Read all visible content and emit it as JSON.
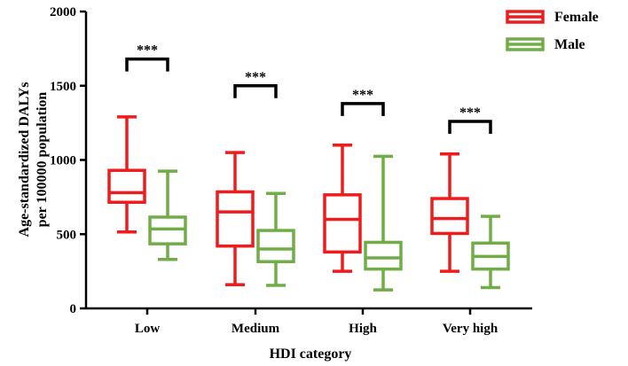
{
  "chart_data": {
    "type": "boxplot",
    "title": "",
    "xlabel": "HDI category",
    "ylabel": [
      "Age-standardized DALYs",
      "per 100000 population"
    ],
    "ylim": [
      0,
      2000
    ],
    "yticks": [
      0,
      500,
      1000,
      1500,
      2000
    ],
    "categories": [
      "Low",
      "Medium",
      "High",
      "Very high"
    ],
    "legend_position": "top-right",
    "series": [
      {
        "name": "Female",
        "color": "#ee1c1c",
        "boxes": [
          {
            "min": 515,
            "q1": 715,
            "median": 780,
            "q3": 930,
            "max": 1290
          },
          {
            "min": 160,
            "q1": 420,
            "median": 650,
            "q3": 785,
            "max": 1050
          },
          {
            "min": 250,
            "q1": 380,
            "median": 600,
            "q3": 765,
            "max": 1100
          },
          {
            "min": 250,
            "q1": 505,
            "median": 605,
            "q3": 740,
            "max": 1040
          }
        ]
      },
      {
        "name": "Male",
        "color": "#70ad47",
        "boxes": [
          {
            "min": 330,
            "q1": 435,
            "median": 535,
            "q3": 615,
            "max": 925
          },
          {
            "min": 155,
            "q1": 315,
            "median": 400,
            "q3": 525,
            "max": 775
          },
          {
            "min": 125,
            "q1": 265,
            "median": 340,
            "q3": 445,
            "max": 1025
          },
          {
            "min": 140,
            "q1": 265,
            "median": 350,
            "q3": 440,
            "max": 620
          }
        ]
      }
    ],
    "significance": [
      {
        "category": "Low",
        "label": "***",
        "y": 1680
      },
      {
        "category": "Medium",
        "label": "***",
        "y": 1500
      },
      {
        "category": "High",
        "label": "***",
        "y": 1380
      },
      {
        "category": "Very high",
        "label": "***",
        "y": 1260
      }
    ]
  }
}
